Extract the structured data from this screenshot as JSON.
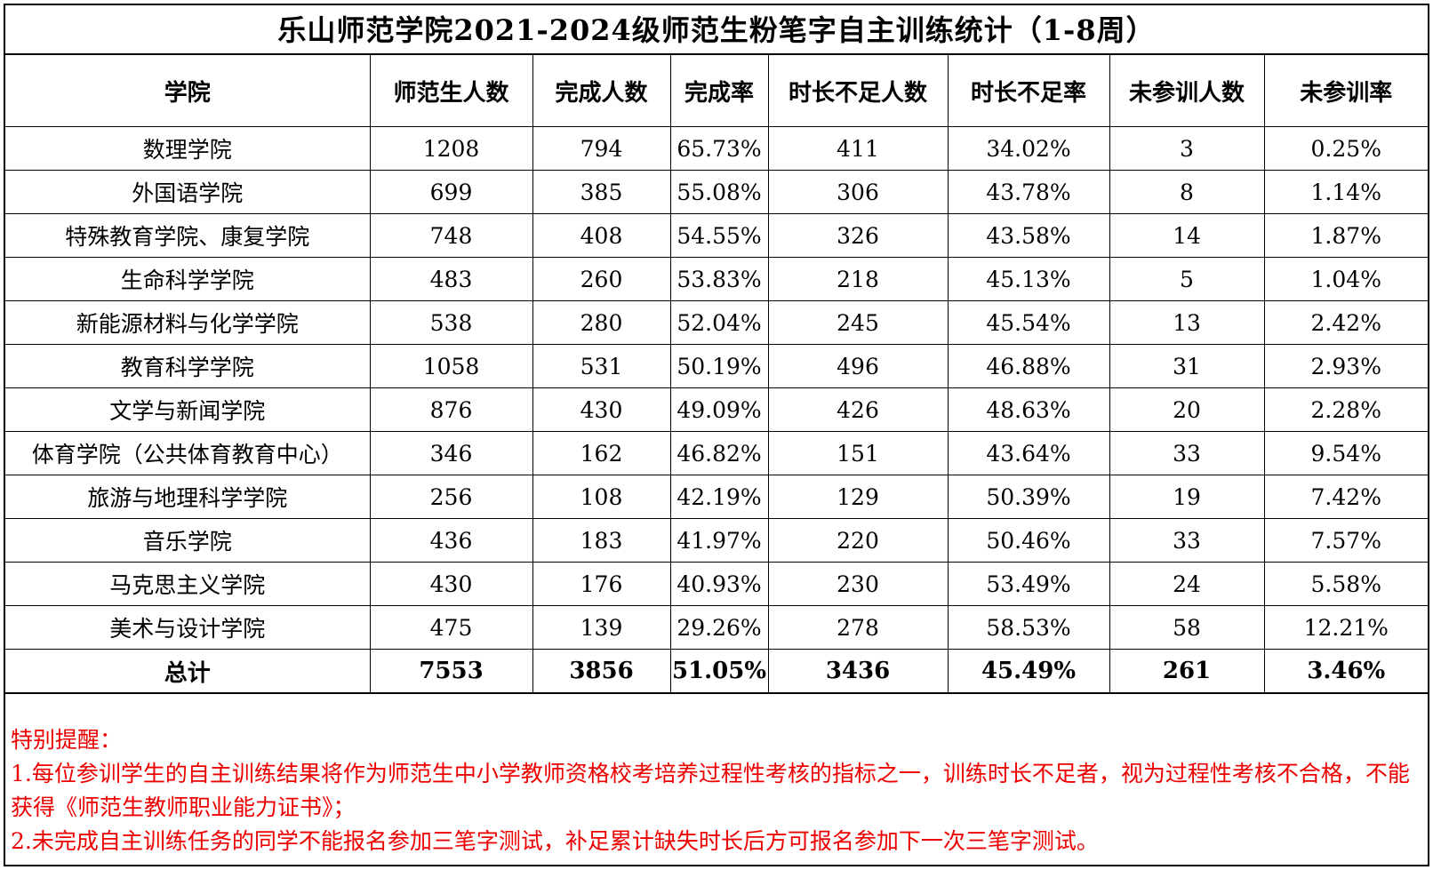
{
  "title": "乐山师范学院2021-2024级师范生粉笔字自主训练统计（1-8周）",
  "table": {
    "headers": [
      "学院",
      "师范生人数",
      "完成人数",
      "完成率",
      "时长不足人数",
      "时长不足率",
      "未参训人数",
      "未参训率"
    ],
    "rows": [
      [
        "数理学院",
        "1208",
        "794",
        "65.73%",
        "411",
        "34.02%",
        "3",
        "0.25%"
      ],
      [
        "外国语学院",
        "699",
        "385",
        "55.08%",
        "306",
        "43.78%",
        "8",
        "1.14%"
      ],
      [
        "特殊教育学院、康复学院",
        "748",
        "408",
        "54.55%",
        "326",
        "43.58%",
        "14",
        "1.87%"
      ],
      [
        "生命科学学院",
        "483",
        "260",
        "53.83%",
        "218",
        "45.13%",
        "5",
        "1.04%"
      ],
      [
        "新能源材料与化学学院",
        "538",
        "280",
        "52.04%",
        "245",
        "45.54%",
        "13",
        "2.42%"
      ],
      [
        "教育科学学院",
        "1058",
        "531",
        "50.19%",
        "496",
        "46.88%",
        "31",
        "2.93%"
      ],
      [
        "文学与新闻学院",
        "876",
        "430",
        "49.09%",
        "426",
        "48.63%",
        "20",
        "2.28%"
      ],
      [
        "体育学院（公共体育教育中心）",
        "346",
        "162",
        "46.82%",
        "151",
        "43.64%",
        "33",
        "9.54%"
      ],
      [
        "旅游与地理科学学院",
        "256",
        "108",
        "42.19%",
        "129",
        "50.39%",
        "19",
        "7.42%"
      ],
      [
        "音乐学院",
        "436",
        "183",
        "41.97%",
        "220",
        "50.46%",
        "33",
        "7.57%"
      ],
      [
        "马克思主义学院",
        "430",
        "176",
        "40.93%",
        "230",
        "53.49%",
        "24",
        "5.58%"
      ],
      [
        "美术与设计学院",
        "475",
        "139",
        "29.26%",
        "278",
        "58.53%",
        "58",
        "12.21%"
      ]
    ],
    "total": [
      "总计",
      "7553",
      "3856",
      "51.05%",
      "3436",
      "45.49%",
      "261",
      "3.46%"
    ]
  },
  "notes": {
    "heading": "特别提醒：",
    "items": [
      "1.每位参训学生的自主训练结果将作为师范生中小学教师资格校考培养过程性考核的指标之一，训练时长不足者，视为过程性考核不合格，不能获得《师范生教师职业能力证书》；",
      "2.未完成自主训练任务的同学不能报名参加三笔字测试，补足累计缺失时长后方可报名参加下一次三笔字测试。"
    ],
    "color": "#ee0000"
  }
}
